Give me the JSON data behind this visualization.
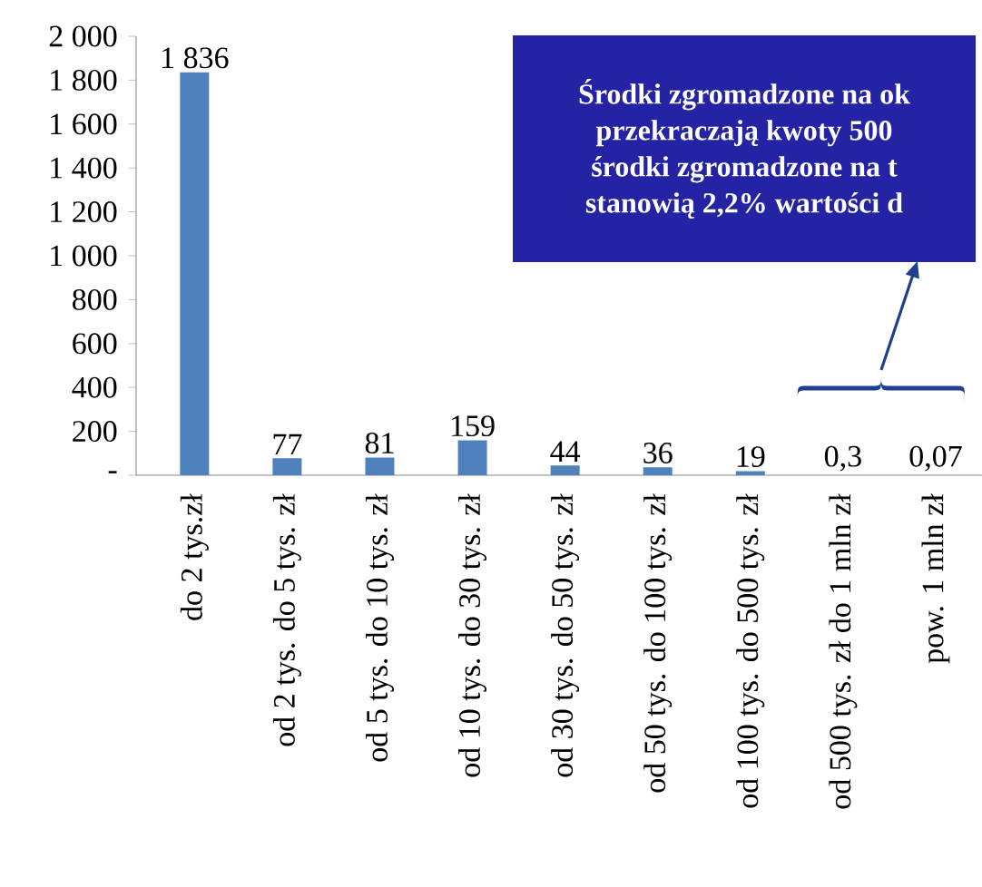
{
  "chart_data": {
    "type": "bar",
    "categories": [
      "do 2 tys.zł",
      "od 2 tys. do 5 tys. zł",
      "od 5 tys. do 10 tys. zł",
      "od 10 tys. do 30 tys. zł",
      "od 30 tys. do 50 tys. zł",
      "od 50 tys. do 100 tys. zł",
      "od 100 tys. do 500 tys. zł",
      "od 500 tys. zł do 1 mln zł",
      "pow. 1 mln zł"
    ],
    "values": [
      1836,
      77,
      81,
      159,
      44,
      36,
      19,
      0.3,
      0.07
    ],
    "value_labels": [
      "1 836",
      "77",
      "81",
      "159",
      "44",
      "36",
      "19",
      "0,3",
      "0,07"
    ],
    "color": "#4f81bd",
    "ylim": [
      0,
      2000
    ],
    "yticks": [
      {
        "value": 0,
        "label": "-"
      },
      200,
      400,
      600,
      800,
      {
        "value": 1000,
        "label": "1 000"
      },
      {
        "value": 1200,
        "label": "1 200"
      },
      {
        "value": 1400,
        "label": "1 400"
      },
      {
        "value": 1600,
        "label": "1 600"
      },
      {
        "value": 1800,
        "label": "1 800"
      },
      {
        "value": 2000,
        "label": "2 000"
      }
    ],
    "grid": false,
    "annotations": [
      "Środki zgromadzone na ok",
      "przekraczają kwoty 500",
      "środki zgromadzone na t",
      "stanowią 2,2% wartości d"
    ]
  }
}
